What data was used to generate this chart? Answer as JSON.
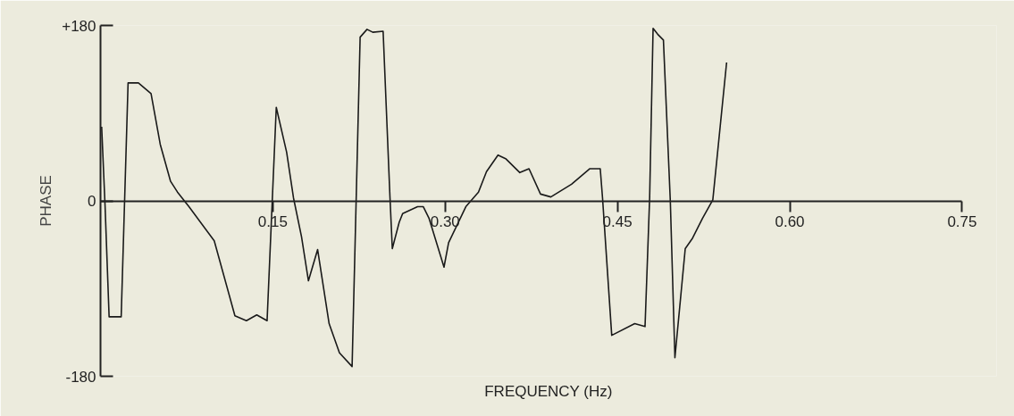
{
  "chart_data": {
    "type": "line",
    "xlabel": "FREQUENCY (Hz)",
    "ylabel": "PHASE",
    "x": [
      0.001,
      0.004,
      0.0075,
      0.018,
      0.024,
      0.033,
      0.044,
      0.052,
      0.061,
      0.067,
      0.077,
      0.099,
      0.117,
      0.127,
      0.136,
      0.145,
      0.153,
      0.162,
      0.168,
      0.175,
      0.181,
      0.189,
      0.199,
      0.208,
      0.219,
      0.226,
      0.232,
      0.237,
      0.246,
      0.252,
      0.254,
      0.26,
      0.263,
      0.276,
      0.281,
      0.286,
      0.299,
      0.303,
      0.318,
      0.329,
      0.336,
      0.346,
      0.353,
      0.365,
      0.373,
      0.383,
      0.392,
      0.41,
      0.426,
      0.435,
      0.437,
      0.445,
      0.465,
      0.474,
      0.478,
      0.481,
      0.485,
      0.49,
      0.496,
      0.5,
      0.509,
      0.515,
      0.524,
      0.533,
      0.545
    ],
    "series": [
      {
        "color": "#1a1a1a",
        "values": [
          76,
          -6,
          -119,
          -119,
          121,
          121,
          110,
          58,
          20,
          9,
          -6,
          -41,
          -118,
          -123,
          -117,
          -123,
          96,
          50,
          3,
          -37,
          -82,
          -50,
          -126,
          -156,
          -170,
          168,
          176,
          173,
          174,
          3,
          -49,
          -22,
          -13,
          -6,
          -6,
          -18,
          -68,
          -43,
          -6,
          9,
          30,
          47,
          43,
          29,
          33,
          7,
          4,
          17,
          33,
          33,
          3,
          -138,
          -126,
          -129,
          3,
          177,
          171,
          165,
          0,
          -161,
          -49,
          -39,
          -18,
          1,
          142
        ]
      }
    ],
    "xlim": [
      0,
      0.75
    ],
    "ylim": [
      -180,
      180
    ],
    "xticks": [
      {
        "value": 0.15,
        "label": "0.15"
      },
      {
        "value": 0.3,
        "label": "0.30"
      },
      {
        "value": 0.45,
        "label": "0.45"
      },
      {
        "value": 0.6,
        "label": "0.60"
      },
      {
        "value": 0.75,
        "label": "0.75"
      }
    ],
    "yticks": [
      {
        "value": 180,
        "label": "+180"
      },
      0,
      {
        "value": -180,
        "label": "-180"
      }
    ],
    "grid": false,
    "marker": "none",
    "line_style": "solid"
  }
}
